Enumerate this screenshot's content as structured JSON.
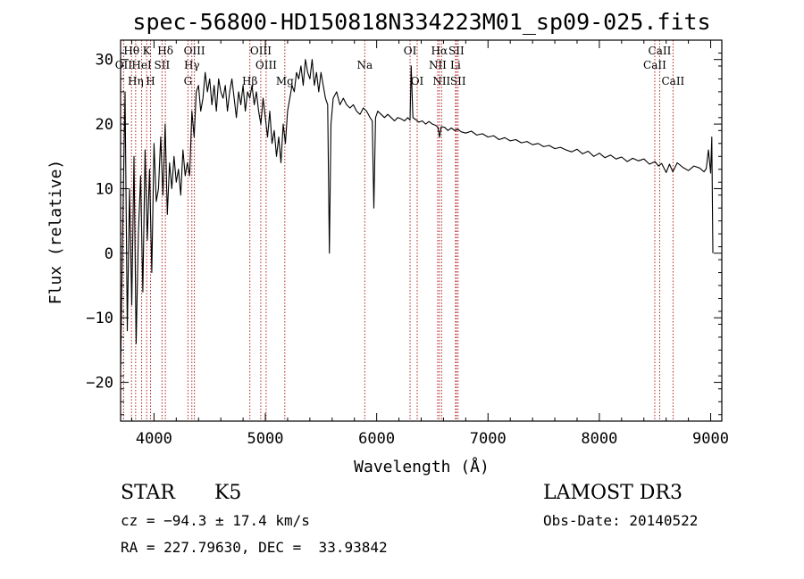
{
  "chart_data": {
    "type": "line",
    "title": "spec-56800-HD150818N334223M01_sp09-025.fits",
    "xlabel": "Wavelength (Å)",
    "ylabel": "Flux (relative)",
    "xlim": [
      3700,
      9100
    ],
    "ylim": [
      -26,
      33
    ],
    "xticks": [
      4000,
      5000,
      6000,
      7000,
      8000,
      9000
    ],
    "yticks": [
      -20,
      -10,
      0,
      10,
      20,
      30
    ],
    "grid": false,
    "series": [
      {
        "name": "flux",
        "x": [
          3700,
          3720,
          3740,
          3760,
          3780,
          3800,
          3820,
          3840,
          3860,
          3880,
          3900,
          3920,
          3940,
          3960,
          3980,
          4000,
          4020,
          4040,
          4060,
          4080,
          4100,
          4120,
          4140,
          4160,
          4180,
          4200,
          4220,
          4240,
          4260,
          4280,
          4300,
          4320,
          4340,
          4360,
          4380,
          4400,
          4420,
          4440,
          4460,
          4480,
          4500,
          4520,
          4540,
          4560,
          4580,
          4600,
          4620,
          4640,
          4660,
          4680,
          4700,
          4720,
          4740,
          4760,
          4780,
          4800,
          4820,
          4840,
          4860,
          4880,
          4900,
          4920,
          4940,
          4960,
          4980,
          5000,
          5020,
          5040,
          5060,
          5080,
          5100,
          5120,
          5140,
          5160,
          5180,
          5200,
          5220,
          5240,
          5260,
          5280,
          5300,
          5320,
          5340,
          5360,
          5380,
          5400,
          5420,
          5440,
          5460,
          5480,
          5500,
          5520,
          5540,
          5560,
          5575,
          5590,
          5610,
          5640,
          5670,
          5700,
          5730,
          5760,
          5790,
          5820,
          5850,
          5880,
          5910,
          5940,
          5960,
          5975,
          5990,
          6010,
          6040,
          6070,
          6100,
          6130,
          6160,
          6190,
          6220,
          6250,
          6280,
          6300,
          6310,
          6325,
          6350,
          6380,
          6410,
          6440,
          6470,
          6500,
          6530,
          6550,
          6565,
          6580,
          6610,
          6640,
          6670,
          6700,
          6730,
          6760,
          6800,
          6850,
          6900,
          6950,
          7000,
          7050,
          7100,
          7150,
          7200,
          7250,
          7300,
          7350,
          7400,
          7450,
          7500,
          7550,
          7600,
          7650,
          7700,
          7750,
          7800,
          7850,
          7900,
          7950,
          8000,
          8050,
          8100,
          8150,
          8200,
          8250,
          8300,
          8350,
          8400,
          8450,
          8500,
          8530,
          8560,
          8600,
          8630,
          8660,
          8700,
          8750,
          8800,
          8850,
          8900,
          8940,
          8960,
          8980,
          9000,
          9010,
          9020
        ],
        "y": [
          -18,
          5,
          25,
          -12,
          10,
          -8,
          15,
          -14,
          3,
          12,
          -6,
          16,
          2,
          13,
          -3,
          17,
          8,
          10,
          18,
          9,
          20,
          6,
          14,
          10,
          15,
          11,
          13,
          9,
          16,
          12,
          14,
          12,
          22,
          18,
          25,
          26,
          22,
          24,
          28,
          25,
          27,
          23,
          26,
          22,
          27,
          25,
          24,
          26,
          22,
          25,
          27,
          24,
          21,
          25,
          23,
          26,
          22,
          25,
          24,
          26,
          23,
          25,
          22,
          20,
          24,
          21,
          18,
          22,
          17,
          19,
          15,
          18,
          14,
          20,
          17,
          22,
          24,
          26,
          25,
          28,
          27,
          29,
          26,
          30,
          28,
          27,
          30,
          26,
          28,
          25,
          28,
          26,
          24,
          23,
          0,
          20,
          24,
          25,
          23,
          24,
          23,
          22.5,
          23,
          22,
          21.5,
          22.5,
          22,
          21,
          20.5,
          7,
          21,
          22,
          21.5,
          21,
          21.5,
          21,
          20.5,
          21,
          20.8,
          20.5,
          21,
          20.6,
          29,
          21,
          20.7,
          20.3,
          20.5,
          20,
          20.4,
          20,
          19.8,
          19.5,
          18,
          19.6,
          19.5,
          19,
          19.4,
          19,
          19.2,
          18.8,
          18.6,
          18.9,
          18.3,
          18.5,
          18,
          18.2,
          17.6,
          17.9,
          17.4,
          17.6,
          17.1,
          17.3,
          16.8,
          17,
          16.5,
          16.7,
          16.2,
          16.4,
          16,
          15.7,
          16.1,
          15.4,
          15.8,
          15,
          15.5,
          14.8,
          15.2,
          14.6,
          14.9,
          14.2,
          14.7,
          14.3,
          14.6,
          13.8,
          14.2,
          13.5,
          13.9,
          12.5,
          13.8,
          12.6,
          14,
          13.3,
          12.8,
          13.5,
          13.2,
          12.6,
          13.1,
          16,
          12.4,
          18,
          0
        ]
      }
    ],
    "lines": [
      {
        "label": "Hθ",
        "x": 3798,
        "row": 1
      },
      {
        "label": "K",
        "x": 3934,
        "row": 1
      },
      {
        "label": "Hδ",
        "x": 4102,
        "row": 1
      },
      {
        "label": "OIII",
        "x": 4363,
        "row": 1
      },
      {
        "label": "OIII",
        "x": 4959,
        "row": 1
      },
      {
        "label": "OI",
        "x": 6300,
        "row": 1
      },
      {
        "label": "Hα",
        "x": 6563,
        "row": 1
      },
      {
        "label": "SII",
        "x": 6716,
        "row": 1
      },
      {
        "label": "CaII",
        "x": 8542,
        "row": 1
      },
      {
        "label": "OII",
        "x": 3727,
        "row": 2
      },
      {
        "label": "HeI",
        "x": 3889,
        "row": 2
      },
      {
        "label": "SII",
        "x": 4072,
        "row": 2
      },
      {
        "label": "Hγ",
        "x": 4340,
        "row": 2
      },
      {
        "label": "OIII",
        "x": 5007,
        "row": 2
      },
      {
        "label": "Na",
        "x": 5893,
        "row": 2
      },
      {
        "label": "NII",
        "x": 6548,
        "row": 2
      },
      {
        "label": "Li",
        "x": 6708,
        "row": 2
      },
      {
        "label": "CaII",
        "x": 8498,
        "row": 2
      },
      {
        "label": "Hη",
        "x": 3835,
        "row": 3
      },
      {
        "label": "H",
        "x": 3969,
        "row": 3
      },
      {
        "label": "G",
        "x": 4305,
        "row": 3
      },
      {
        "label": "Hβ",
        "x": 4861,
        "row": 3
      },
      {
        "label": "Mg",
        "x": 5175,
        "row": 3
      },
      {
        "label": "OI",
        "x": 6364,
        "row": 3
      },
      {
        "label": "NII",
        "x": 6583,
        "row": 3
      },
      {
        "label": "SII",
        "x": 6731,
        "row": 3
      },
      {
        "label": "CaII",
        "x": 8662,
        "row": 3
      }
    ]
  },
  "info": {
    "object_class": "STAR",
    "subclass": "K5",
    "survey": "LAMOST DR3",
    "cz": "cz = −94.3 ± 17.4 km/s",
    "obs_date": "Obs-Date: 20140522",
    "coords": "RA = 227.79630, DEC =  33.93842"
  }
}
